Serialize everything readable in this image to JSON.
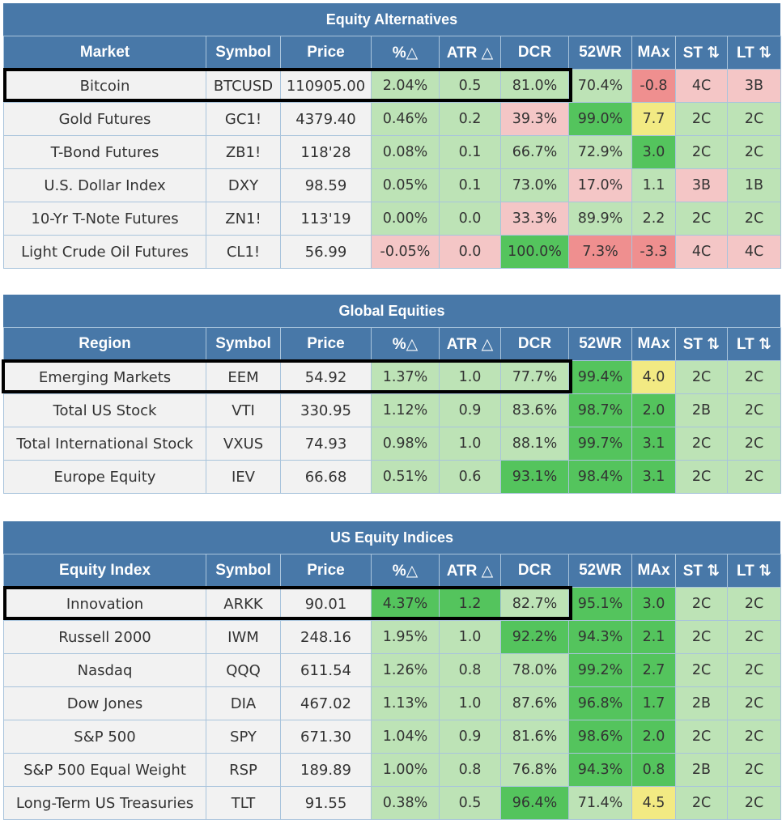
{
  "sections": [
    {
      "title": "Equity Alternatives",
      "headers": [
        "Market",
        "Symbol",
        "Price",
        "%△",
        "ATR △",
        "DCR",
        "52WR",
        "MAx",
        "ST ⇅",
        "LT ⇅"
      ],
      "rows": [
        {
          "cells": [
            "Bitcoin",
            "BTCUSD",
            "110905.00",
            "2.04%",
            "0.5",
            "81.0%",
            "70.4%",
            "-0.8",
            "4C",
            "3B"
          ],
          "colors": [
            "w",
            "w",
            "w",
            "g1",
            "g1",
            "g1",
            "g1",
            "r2",
            "r1",
            "r1"
          ]
        },
        {
          "cells": [
            "Gold Futures",
            "GC1!",
            "4379.40",
            "0.46%",
            "0.2",
            "39.3%",
            "99.0%",
            "7.7",
            "2C",
            "2C"
          ],
          "colors": [
            "w",
            "w",
            "w",
            "g1",
            "g1",
            "r1",
            "g2",
            "y1",
            "g1",
            "g1"
          ]
        },
        {
          "cells": [
            "T-Bond Futures",
            "ZB1!",
            "118'28",
            "0.08%",
            "0.1",
            "66.7%",
            "72.9%",
            "3.0",
            "2C",
            "2C"
          ],
          "colors": [
            "w",
            "w",
            "w",
            "g1",
            "g1",
            "g1",
            "g1",
            "g2",
            "g1",
            "g1"
          ]
        },
        {
          "cells": [
            "U.S. Dollar Index",
            "DXY",
            "98.59",
            "0.05%",
            "0.1",
            "73.0%",
            "17.0%",
            "1.1",
            "3B",
            "1B"
          ],
          "colors": [
            "w",
            "w",
            "w",
            "g1",
            "g1",
            "g1",
            "r1",
            "g1",
            "r1",
            "g1"
          ]
        },
        {
          "cells": [
            "10-Yr T-Note Futures",
            "ZN1!",
            "113'19",
            "0.00%",
            "0.0",
            "33.3%",
            "89.9%",
            "2.2",
            "2C",
            "2C"
          ],
          "colors": [
            "w",
            "w",
            "w",
            "g1",
            "g1",
            "r1",
            "g1",
            "g1",
            "g1",
            "g1"
          ]
        },
        {
          "cells": [
            "Light Crude Oil Futures",
            "CL1!",
            "56.99",
            "-0.05%",
            "0.0",
            "100.0%",
            "7.3%",
            "-3.3",
            "4C",
            "4C"
          ],
          "colors": [
            "w",
            "w",
            "w",
            "r1",
            "r1",
            "g2",
            "r2",
            "r2",
            "r1",
            "r1"
          ]
        }
      ]
    },
    {
      "title": "Global Equities",
      "headers": [
        "Region",
        "Symbol",
        "Price",
        "%△",
        "ATR △",
        "DCR",
        "52WR",
        "MAx",
        "ST ⇅",
        "LT ⇅"
      ],
      "rows": [
        {
          "cells": [
            "Emerging Markets",
            "EEM",
            "54.92",
            "1.37%",
            "1.0",
            "77.7%",
            "99.4%",
            "4.0",
            "2C",
            "2C"
          ],
          "colors": [
            "w",
            "w",
            "w",
            "g1",
            "g1",
            "g1",
            "g2",
            "y1",
            "g1",
            "g1"
          ]
        },
        {
          "cells": [
            "Total US Stock",
            "VTI",
            "330.95",
            "1.12%",
            "0.9",
            "83.6%",
            "98.7%",
            "2.0",
            "2B",
            "2C"
          ],
          "colors": [
            "w",
            "w",
            "w",
            "g1",
            "g1",
            "g1",
            "g2",
            "g2",
            "g1",
            "g1"
          ]
        },
        {
          "cells": [
            "Total International Stock",
            "VXUS",
            "74.93",
            "0.98%",
            "1.0",
            "88.1%",
            "99.7%",
            "3.1",
            "2C",
            "2C"
          ],
          "colors": [
            "w",
            "w",
            "w",
            "g1",
            "g1",
            "g1",
            "g2",
            "g2",
            "g1",
            "g1"
          ]
        },
        {
          "cells": [
            "Europe Equity",
            "IEV",
            "66.68",
            "0.51%",
            "0.6",
            "93.1%",
            "98.4%",
            "3.1",
            "2C",
            "2C"
          ],
          "colors": [
            "w",
            "w",
            "w",
            "g1",
            "g1",
            "g2",
            "g2",
            "g2",
            "g1",
            "g1"
          ]
        }
      ]
    },
    {
      "title": "US Equity Indices",
      "headers": [
        "Equity Index",
        "Symbol",
        "Price",
        "%△",
        "ATR △",
        "DCR",
        "52WR",
        "MAx",
        "ST ⇅",
        "LT ⇅"
      ],
      "rows": [
        {
          "cells": [
            "Innovation",
            "ARKK",
            "90.01",
            "4.37%",
            "1.2",
            "82.7%",
            "95.1%",
            "3.0",
            "2C",
            "2C"
          ],
          "colors": [
            "w",
            "w",
            "w",
            "g2",
            "g2",
            "g1",
            "g2",
            "g2",
            "g1",
            "g1"
          ]
        },
        {
          "cells": [
            "Russell 2000",
            "IWM",
            "248.16",
            "1.95%",
            "1.0",
            "92.2%",
            "94.3%",
            "2.1",
            "2C",
            "2C"
          ],
          "colors": [
            "w",
            "w",
            "w",
            "g1",
            "g1",
            "g2",
            "g2",
            "g2",
            "g1",
            "g1"
          ]
        },
        {
          "cells": [
            "Nasdaq",
            "QQQ",
            "611.54",
            "1.26%",
            "0.8",
            "78.0%",
            "99.2%",
            "2.7",
            "2C",
            "2C"
          ],
          "colors": [
            "w",
            "w",
            "w",
            "g1",
            "g1",
            "g1",
            "g2",
            "g2",
            "g1",
            "g1"
          ]
        },
        {
          "cells": [
            "Dow Jones",
            "DIA",
            "467.02",
            "1.13%",
            "1.0",
            "87.6%",
            "96.8%",
            "1.7",
            "2B",
            "2C"
          ],
          "colors": [
            "w",
            "w",
            "w",
            "g1",
            "g1",
            "g1",
            "g2",
            "g2",
            "g1",
            "g1"
          ]
        },
        {
          "cells": [
            "S&P 500",
            "SPY",
            "671.30",
            "1.04%",
            "0.9",
            "81.6%",
            "98.6%",
            "2.0",
            "2C",
            "2C"
          ],
          "colors": [
            "w",
            "w",
            "w",
            "g1",
            "g1",
            "g1",
            "g2",
            "g2",
            "g1",
            "g1"
          ]
        },
        {
          "cells": [
            "S&P 500 Equal Weight",
            "RSP",
            "189.89",
            "1.00%",
            "0.8",
            "76.8%",
            "94.3%",
            "0.8",
            "2B",
            "2C"
          ],
          "colors": [
            "w",
            "w",
            "w",
            "g1",
            "g1",
            "g1",
            "g2",
            "g2",
            "g1",
            "g1"
          ]
        },
        {
          "cells": [
            "Long-Term US Treasuries",
            "TLT",
            "91.55",
            "0.38%",
            "0.5",
            "96.4%",
            "71.4%",
            "4.5",
            "2C",
            "2C"
          ],
          "colors": [
            "w",
            "w",
            "w",
            "g1",
            "g1",
            "g2",
            "g1",
            "y1",
            "g1",
            "g1"
          ]
        }
      ]
    }
  ]
}
